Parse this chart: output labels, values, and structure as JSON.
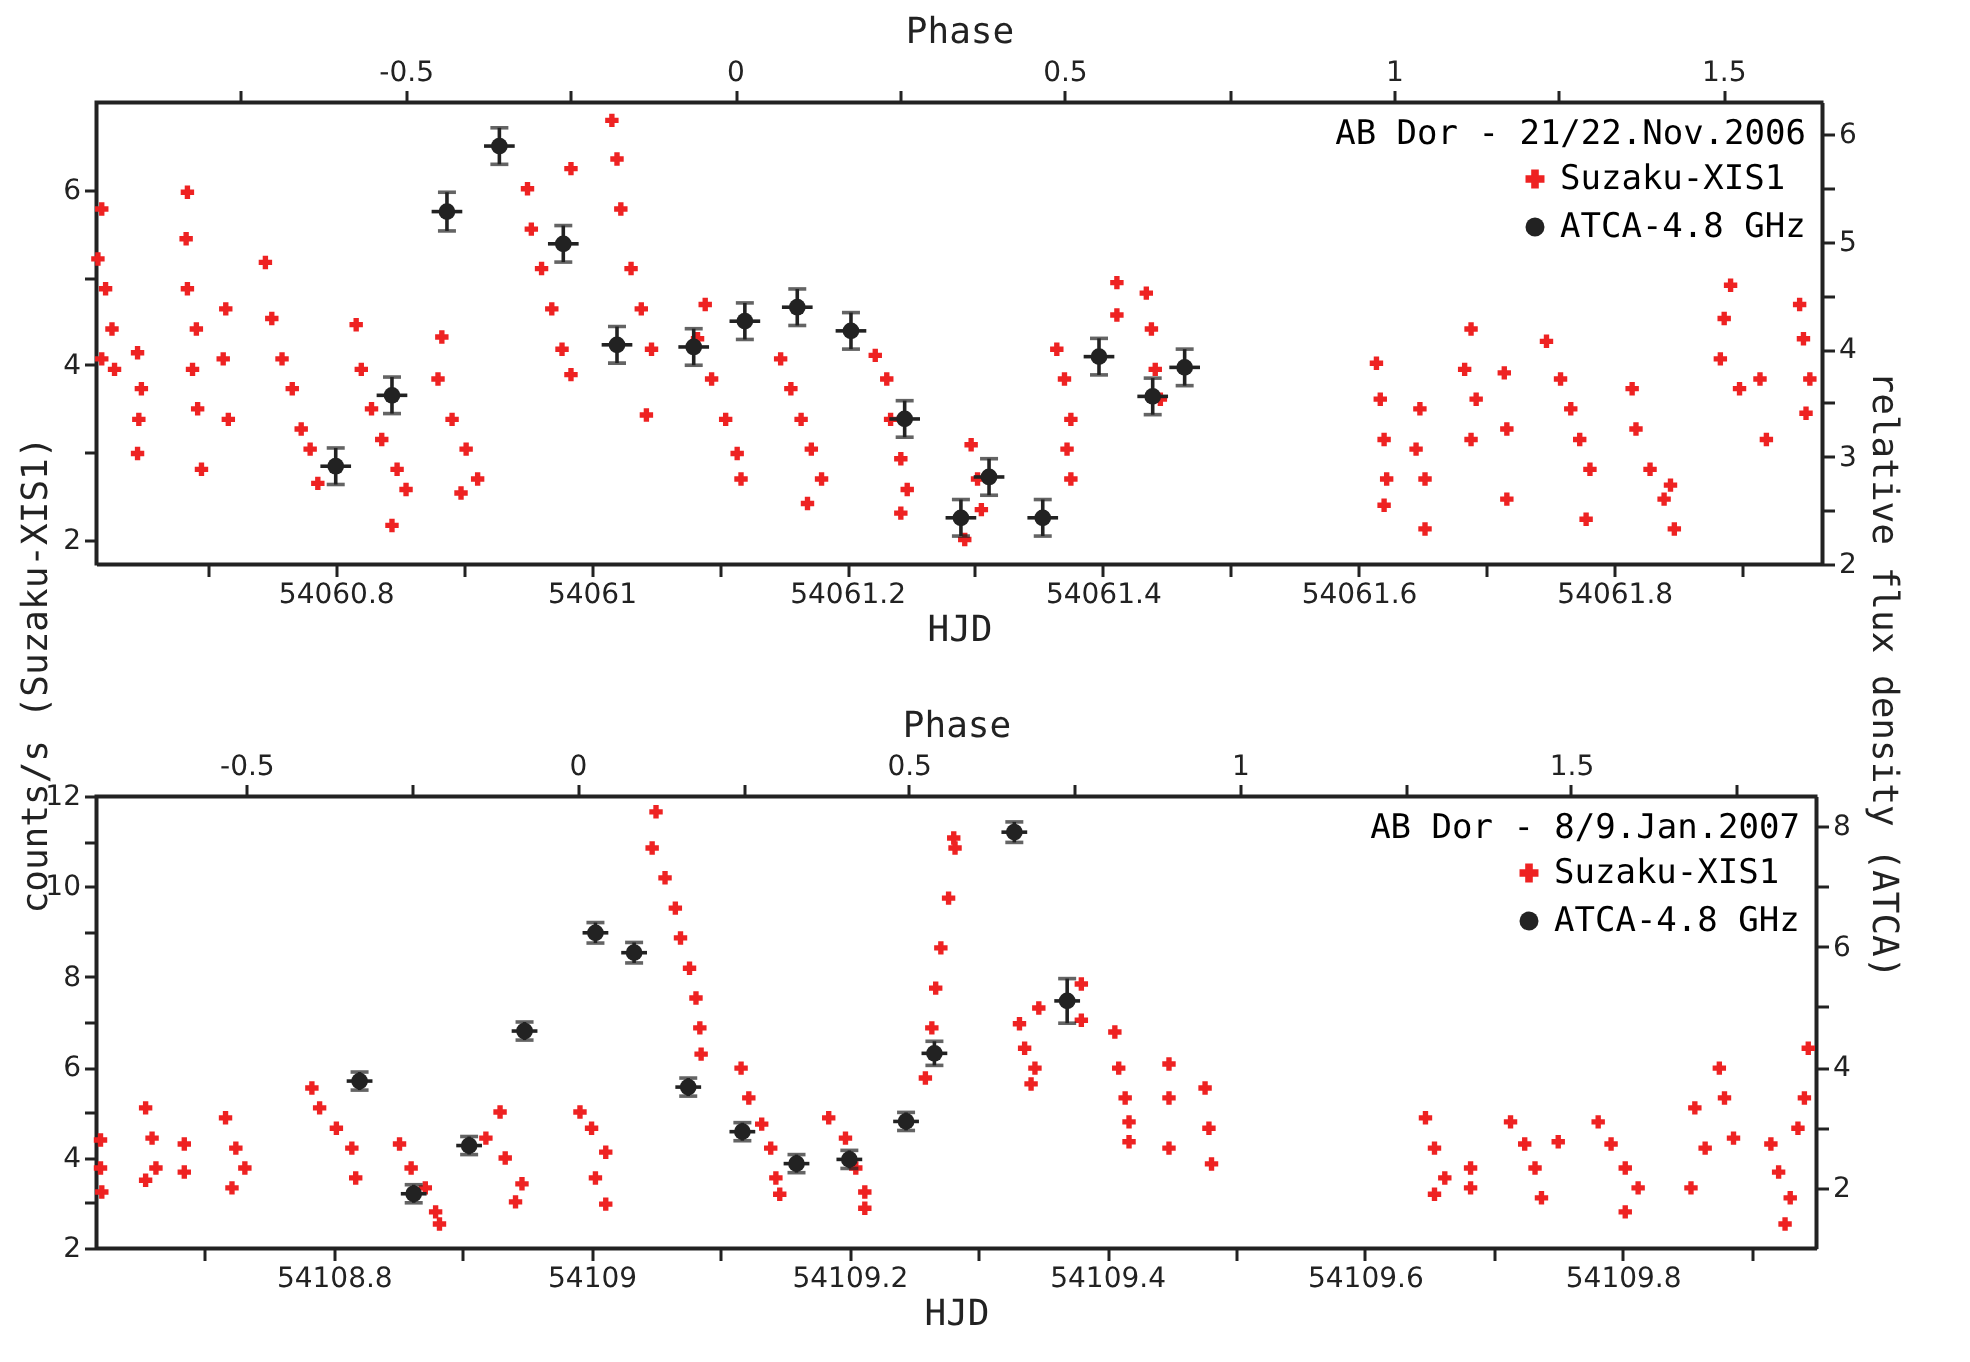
{
  "chart_data": [
    {
      "type": "scatter",
      "xlabel": "HJD",
      "x2label": "Phase",
      "ylabel": "counts/s (Suzaku-XIS1)",
      "y2label": "relative flux density (ATCA)",
      "legend": "top right",
      "legend_title": "AB Dor - 21/22.Nov.2006",
      "xlim": [
        54060.6125,
        54061.9625
      ],
      "xticks": [
        {
          "value": 54060.7,
          "label": null
        },
        54060.8,
        {
          "value": 54060.9,
          "label": null
        },
        54061,
        {
          "value": 54061.1,
          "label": null
        },
        54061.2,
        {
          "value": 54061.3,
          "label": null
        },
        54061.4,
        {
          "value": 54061.5,
          "label": null
        },
        54061.6,
        {
          "value": 54061.7,
          "label": null
        },
        54061.8,
        {
          "value": 54061.9,
          "label": null
        }
      ],
      "x2lim": [
        -0.97,
        1.65
      ],
      "x2ticks": [
        {
          "value": -0.75,
          "label": null
        },
        -0.5,
        {
          "value": -0.25,
          "label": null
        },
        0,
        {
          "value": 0.25,
          "label": null
        },
        0.5,
        {
          "value": 0.75,
          "label": null
        },
        1,
        {
          "value": 1.25,
          "label": null
        },
        1.5
      ],
      "ylim": [
        1.73,
        7.0
      ],
      "yticks": [
        2,
        {
          "value": 3,
          "label": null
        },
        4,
        {
          "value": 5,
          "label": null
        },
        6
      ],
      "y2lim": [
        2.0,
        6.3
      ],
      "y2ticks": [
        2,
        {
          "value": 2.5,
          "label": null
        },
        3,
        {
          "value": 3.5,
          "label": null
        },
        4,
        {
          "value": 4.5,
          "label": null
        },
        5,
        {
          "value": 5.5,
          "label": null
        },
        6
      ],
      "series": [
        {
          "name": "Suzaku-XIS1",
          "color": "#ee2222",
          "marker": "cross",
          "x": [
            54060.617,
            54060.614,
            54060.62,
            54060.625,
            54060.617,
            54060.627,
            54060.645,
            54060.648,
            54060.646,
            54060.645,
            54060.684,
            54060.683,
            54060.684,
            54060.691,
            54060.688,
            54060.692,
            54060.695,
            54060.714,
            54060.712,
            54060.716,
            54060.745,
            54060.75,
            54060.758,
            54060.766,
            54060.773,
            54060.78,
            54060.786,
            54060.816,
            54060.82,
            54060.828,
            54060.836,
            54060.848,
            54060.855,
            54060.844,
            54060.883,
            54060.88,
            54060.891,
            54060.902,
            54060.911,
            54060.898,
            54060.984,
            54060.95,
            54060.953,
            54060.961,
            54060.969,
            54060.977,
            54060.984,
            54061.016,
            54061.02,
            54061.023,
            54061.031,
            54061.039,
            54061.047,
            54061.043,
            54061.089,
            54061.083,
            54061.094,
            54061.105,
            54061.114,
            54061.117,
            54061.148,
            54061.156,
            54061.164,
            54061.172,
            54061.18,
            54061.169,
            54061.222,
            54061.231,
            54061.234,
            54061.242,
            54061.247,
            54061.242,
            54061.297,
            54061.302,
            54061.305,
            54061.292,
            54061.364,
            54061.37,
            54061.375,
            54061.372,
            54061.375,
            54061.411,
            54061.411,
            54061.434,
            54061.438,
            54061.441,
            54061.445,
            54061.614,
            54061.617,
            54061.62,
            54061.622,
            54061.62,
            54061.648,
            54061.645,
            54061.652,
            54061.652,
            54061.688,
            54061.683,
            54061.692,
            54061.688,
            54061.714,
            54061.716,
            54061.716,
            54061.747,
            54061.758,
            54061.766,
            54061.773,
            54061.781,
            54061.778,
            54061.814,
            54061.817,
            54061.828,
            54061.839,
            54061.847,
            54061.844,
            54061.891,
            54061.886,
            54061.883,
            54061.898,
            54061.914,
            54061.919,
            54061.945,
            54061.948,
            54061.953,
            54061.95
          ],
          "values": [
            5.78,
            5.21,
            4.87,
            4.41,
            4.07,
            3.95,
            4.14,
            3.73,
            3.38,
            2.99,
            5.97,
            5.44,
            4.87,
            4.41,
            3.95,
            3.5,
            2.81,
            4.64,
            4.07,
            3.38,
            5.17,
            4.53,
            4.07,
            3.73,
            3.27,
            3.04,
            2.65,
            4.46,
            3.95,
            3.5,
            3.15,
            2.81,
            2.58,
            2.17,
            4.32,
            3.84,
            3.38,
            3.04,
            2.7,
            2.54,
            6.24,
            6.01,
            5.55,
            5.1,
            4.64,
            4.18,
            3.89,
            6.79,
            6.35,
            5.78,
            5.1,
            4.64,
            4.18,
            3.43,
            4.69,
            4.3,
            3.84,
            3.38,
            2.99,
            2.7,
            4.07,
            3.73,
            3.38,
            3.04,
            2.7,
            2.42,
            4.11,
            3.84,
            3.38,
            2.93,
            2.58,
            2.31,
            3.09,
            2.7,
            2.35,
            2.01,
            4.18,
            3.84,
            3.38,
            3.04,
            2.7,
            4.94,
            4.57,
            4.82,
            4.41,
            3.95,
            3.61,
            4.02,
            3.61,
            3.15,
            2.7,
            2.4,
            3.5,
            3.04,
            2.7,
            2.13,
            4.41,
            3.95,
            3.61,
            3.15,
            3.91,
            3.27,
            2.47,
            4.27,
            3.84,
            3.5,
            3.15,
            2.81,
            2.24,
            3.73,
            3.27,
            2.81,
            2.47,
            2.13,
            2.63,
            4.91,
            4.53,
            4.07,
            3.73,
            3.84,
            3.15,
            4.69,
            4.3,
            3.84,
            3.45
          ]
        },
        {
          "name": "ATCA-4.8 GHz",
          "color": "#222222",
          "marker": "circle",
          "axis": "y2",
          "x": [
            54060.8,
            54060.844,
            54060.887,
            54060.928,
            54060.978,
            54061.02,
            54061.08,
            54061.12,
            54061.161,
            54061.203,
            54061.245,
            54061.289,
            54061.311,
            54061.353,
            54061.397,
            54061.439,
            54061.464
          ],
          "values": [
            2.91,
            3.57,
            5.28,
            5.89,
            4.98,
            4.04,
            4.02,
            4.26,
            4.39,
            4.17,
            3.35,
            2.43,
            2.81,
            2.43,
            3.93,
            3.56,
            3.83
          ],
          "errors": [
            0.17,
            0.17,
            0.18,
            0.17,
            0.17,
            0.17,
            0.17,
            0.17,
            0.17,
            0.17,
            0.17,
            0.17,
            0.17,
            0.17,
            0.17,
            0.17,
            0.17
          ],
          "xerrors": [
            0.012,
            0.012,
            0.012,
            0.012,
            0.012,
            0.012,
            0.012,
            0.012,
            0.012,
            0.012,
            0.012,
            0.012,
            0.012,
            0.012,
            0.012,
            0.012,
            0.012
          ]
        }
      ]
    },
    {
      "type": "scatter",
      "xlabel": "HJD",
      "x2label": "Phase",
      "legend": "top right",
      "legend_title": "AB Dor - 8/9.Jan.2007",
      "xlim": [
        54108.6155,
        54109.95
      ],
      "xticks": [
        {
          "value": 54108.7,
          "label": null
        },
        54108.8,
        {
          "value": 54108.9,
          "label": null
        },
        54109,
        {
          "value": 54109.1,
          "label": null
        },
        54109.2,
        {
          "value": 54109.3,
          "label": null
        },
        54109.4,
        {
          "value": 54109.5,
          "label": null
        },
        54109.6,
        {
          "value": 54109.7,
          "label": null
        },
        54109.8,
        {
          "value": 54109.9,
          "label": null
        }
      ],
      "x2lim": [
        -0.727,
        1.87
      ],
      "x2ticks": [
        -0.5,
        {
          "value": -0.25,
          "label": null
        },
        0,
        {
          "value": 0.25,
          "label": null
        },
        0.5,
        {
          "value": 0.75,
          "label": null
        },
        1,
        {
          "value": 1.25,
          "label": null
        },
        1.5,
        {
          "value": 1.75,
          "label": null
        }
      ],
      "ylim": [
        2,
        12
      ],
      "yticks": [
        2,
        {
          "value": 3,
          "label": null
        },
        4,
        {
          "value": 5,
          "label": null
        },
        6,
        {
          "value": 7,
          "label": null
        },
        8,
        {
          "value": 9,
          "label": null
        },
        10,
        {
          "value": 11,
          "label": null
        },
        12
      ],
      "y2lim": [
        1.0,
        8.5
      ],
      "y2ticks": [
        2,
        {
          "value": 3,
          "label": null
        },
        4,
        {
          "value": 5,
          "label": null
        },
        6,
        {
          "value": 7,
          "label": null
        },
        8
      ],
      "series": [
        {
          "name": "Suzaku-XIS1",
          "color": "#ee2222",
          "marker": "cross",
          "x": [
            54108.619,
            54108.619,
            54108.62,
            54108.654,
            54108.659,
            54108.662,
            54108.654,
            54108.684,
            54108.684,
            54108.716,
            54108.724,
            54108.731,
            54108.721,
            54108.783,
            54108.789,
            54108.802,
            54108.814,
            54108.817,
            54108.851,
            54108.86,
            54108.871,
            54108.879,
            54108.882,
            54108.929,
            54108.918,
            54108.933,
            54108.946,
            54108.941,
            54108.991,
            54109.0,
            54109.011,
            54109.003,
            54109.011,
            54109.05,
            54109.047,
            54109.057,
            54109.065,
            54109.069,
            54109.076,
            54109.081,
            54109.084,
            54109.085,
            54109.116,
            54109.122,
            54109.132,
            54109.139,
            54109.143,
            54109.146,
            54109.184,
            54109.197,
            54109.205,
            54109.212,
            54109.212,
            54109.259,
            54109.264,
            54109.267,
            54109.271,
            54109.277,
            54109.282,
            54109.281,
            54109.332,
            54109.336,
            54109.344,
            54109.341,
            54109.347,
            54109.38,
            54109.38,
            54109.406,
            54109.409,
            54109.414,
            54109.417,
            54109.417,
            54109.448,
            54109.448,
            54109.448,
            54109.476,
            54109.479,
            54109.481,
            54109.647,
            54109.654,
            54109.662,
            54109.654,
            54109.682,
            54109.682,
            54109.713,
            54109.724,
            54109.732,
            54109.737,
            54109.75,
            54109.781,
            54109.791,
            54109.802,
            54109.812,
            54109.802,
            54109.856,
            54109.864,
            54109.853,
            54109.875,
            54109.879,
            54109.886,
            54109.915,
            54109.921,
            54109.93,
            54109.926,
            54109.944,
            54109.941,
            54109.936
          ],
          "values": [
            4.39,
            3.77,
            3.24,
            5.1,
            4.43,
            3.77,
            3.5,
            4.3,
            3.68,
            4.88,
            4.21,
            3.77,
            3.33,
            5.54,
            5.1,
            4.65,
            4.21,
            3.55,
            4.3,
            3.77,
            3.33,
            2.8,
            2.53,
            5.01,
            4.43,
            3.99,
            3.42,
            3.02,
            5.01,
            4.65,
            4.12,
            3.55,
            2.97,
            11.65,
            10.85,
            10.19,
            9.52,
            8.86,
            8.19,
            7.53,
            6.87,
            6.29,
            5.98,
            5.32,
            4.74,
            4.21,
            3.55,
            3.19,
            4.88,
            4.43,
            3.77,
            3.24,
            2.88,
            5.76,
            6.87,
            7.75,
            8.64,
            9.74,
            10.85,
            11.07,
            6.96,
            6.42,
            5.98,
            5.63,
            7.31,
            7.84,
            7.04,
            6.78,
            5.98,
            5.32,
            4.79,
            4.35,
            6.07,
            5.32,
            4.21,
            5.54,
            4.65,
            3.86,
            4.88,
            4.21,
            3.55,
            3.19,
            3.77,
            3.33,
            4.79,
            4.3,
            3.77,
            3.11,
            4.35,
            4.79,
            4.3,
            3.77,
            3.33,
            2.8,
            5.1,
            4.21,
            3.33,
            5.98,
            5.32,
            4.43,
            4.3,
            3.68,
            3.11,
            2.53,
            6.42,
            5.32,
            4.65
          ]
        },
        {
          "name": "ATCA-4.8 GHz",
          "color": "#222222",
          "marker": "circle",
          "axis": "y2",
          "x": [
            54108.82,
            54108.862,
            54108.905,
            54108.948,
            54109.003,
            54109.033,
            54109.075,
            54109.117,
            54109.159,
            54109.2,
            54109.244,
            54109.266,
            54109.328,
            54109.369
          ],
          "values": [
            3.77,
            1.9,
            2.7,
            4.6,
            6.23,
            5.9,
            3.67,
            2.93,
            2.4,
            2.47,
            3.1,
            4.23,
            7.9,
            5.1
          ],
          "errors": [
            0.15,
            0.15,
            0.15,
            0.15,
            0.17,
            0.17,
            0.15,
            0.15,
            0.15,
            0.15,
            0.15,
            0.2,
            0.17,
            0.37
          ],
          "xerrors": [
            0.01,
            0.01,
            0.01,
            0.01,
            0.01,
            0.01,
            0.01,
            0.01,
            0.01,
            0.01,
            0.01,
            0.01,
            0.01,
            0.01
          ]
        }
      ]
    }
  ]
}
